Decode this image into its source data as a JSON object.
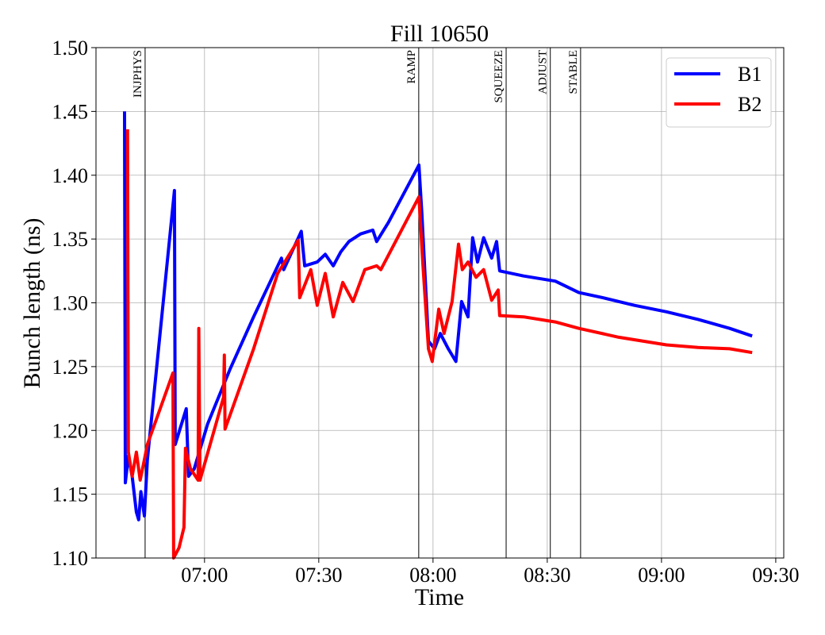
{
  "chart_data": {
    "type": "line",
    "title": "Fill 10650",
    "x_label": "Time",
    "y_label": "Bunch length (ns)",
    "xlim": [
      391.5,
      572.1
    ],
    "xticks": [
      {
        "value": 420,
        "label": "07:00"
      },
      {
        "value": 450,
        "label": "07:30"
      },
      {
        "value": 480,
        "label": "08:00"
      },
      {
        "value": 510,
        "label": "08:30"
      },
      {
        "value": 540,
        "label": "09:00"
      },
      {
        "value": 570,
        "label": "09:30"
      }
    ],
    "ylim": [
      1.1,
      1.5
    ],
    "yticks": [
      {
        "value": 1.1,
        "label": "1.10"
      },
      {
        "value": 1.15,
        "label": "1.15"
      },
      {
        "value": 1.2,
        "label": "1.20"
      },
      {
        "value": 1.25,
        "label": "1.25"
      },
      {
        "value": 1.3,
        "label": "1.30"
      },
      {
        "value": 1.35,
        "label": "1.35"
      },
      {
        "value": 1.4,
        "label": "1.40"
      },
      {
        "value": 1.45,
        "label": "1.45"
      },
      {
        "value": 1.5,
        "label": "1.50"
      }
    ],
    "grid": true,
    "legend": "upper right",
    "vlines": [
      {
        "x": 404.4,
        "label": "INJPHYS"
      },
      {
        "x": 476.25,
        "label": "RAMP"
      },
      {
        "x": 499.2,
        "label": "SQUEEZE"
      },
      {
        "x": 510.8,
        "label": "ADJUST"
      },
      {
        "x": 518.75,
        "label": "STABLE"
      }
    ],
    "series": [
      {
        "name": "B1",
        "color": "#0000ff",
        "x": [
          399.0,
          399.2,
          400.0,
          401.0,
          402.1,
          402.7,
          403.3,
          404.2,
          405.0,
          412.1,
          412.3,
          415.2,
          415.8,
          417.3,
          420.8,
          426.7,
          432.9,
          440.2,
          440.8,
          445.4,
          446.3,
          449.6,
          451.7,
          453.8,
          455.8,
          457.9,
          461.0,
          464.2,
          465.2,
          468.3,
          476.3,
          477.1,
          478.8,
          480.4,
          481.9,
          484.0,
          486.0,
          487.5,
          489.2,
          490.4,
          491.7,
          493.3,
          495.4,
          496.7,
          497.5,
          503.8,
          512.1,
          518.3,
          524.6,
          532.9,
          541.3,
          549.6,
          557.9,
          563.8
        ],
        "values": [
          1.45,
          1.159,
          1.18,
          1.164,
          1.136,
          1.13,
          1.152,
          1.133,
          1.177,
          1.388,
          1.189,
          1.217,
          1.164,
          1.17,
          1.205,
          1.248,
          1.289,
          1.335,
          1.326,
          1.356,
          1.329,
          1.332,
          1.338,
          1.329,
          1.34,
          1.348,
          1.354,
          1.357,
          1.348,
          1.363,
          1.408,
          1.369,
          1.27,
          1.264,
          1.276,
          1.264,
          1.254,
          1.301,
          1.289,
          1.351,
          1.332,
          1.351,
          1.335,
          1.348,
          1.325,
          1.321,
          1.317,
          1.308,
          1.304,
          1.298,
          1.293,
          1.287,
          1.28,
          1.274
        ]
      },
      {
        "name": "B2",
        "color": "#ff0000",
        "x": [
          399.8,
          400.0,
          401.0,
          402.1,
          403.1,
          404.2,
          405.0,
          411.7,
          411.9,
          413.3,
          414.6,
          415.0,
          416.3,
          418.3,
          418.5,
          418.8,
          425.0,
          425.2,
          425.4,
          432.9,
          439.2,
          444.6,
          445.0,
          447.9,
          449.6,
          451.7,
          453.8,
          456.3,
          459.0,
          462.1,
          465.2,
          466.3,
          476.3,
          477.3,
          478.8,
          479.8,
          481.5,
          482.9,
          485.0,
          486.7,
          487.7,
          489.2,
          491.3,
          493.3,
          495.4,
          497.1,
          497.5,
          503.8,
          512.1,
          518.3,
          528.8,
          541.3,
          549.6,
          557.9,
          563.8
        ],
        "values": [
          1.436,
          1.183,
          1.164,
          1.183,
          1.161,
          1.177,
          1.189,
          1.245,
          1.1,
          1.108,
          1.124,
          1.186,
          1.17,
          1.161,
          1.28,
          1.161,
          1.226,
          1.259,
          1.201,
          1.264,
          1.323,
          1.349,
          1.304,
          1.326,
          1.298,
          1.323,
          1.289,
          1.316,
          1.301,
          1.326,
          1.329,
          1.326,
          1.383,
          1.332,
          1.264,
          1.254,
          1.295,
          1.276,
          1.301,
          1.346,
          1.326,
          1.332,
          1.32,
          1.326,
          1.302,
          1.31,
          1.29,
          1.289,
          1.285,
          1.28,
          1.273,
          1.267,
          1.265,
          1.264,
          1.261
        ]
      }
    ]
  }
}
